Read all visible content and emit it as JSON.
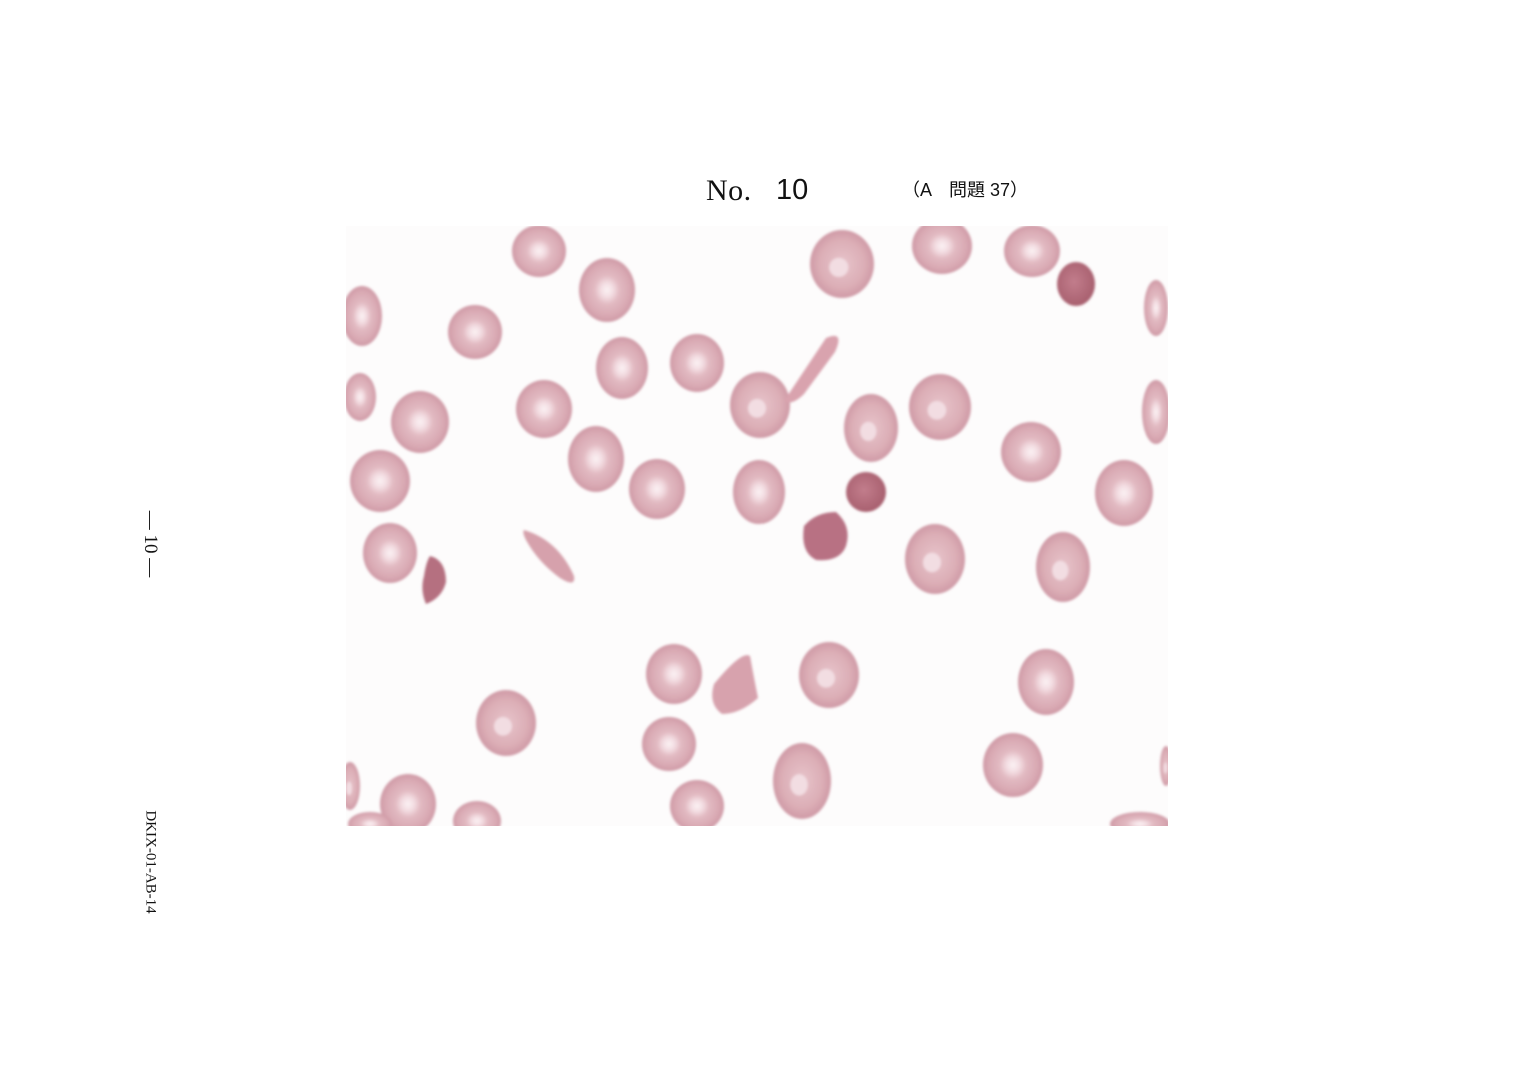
{
  "header": {
    "no_label": "No.",
    "number": "10",
    "reference": "（A　問題 37）"
  },
  "side": {
    "page_number": "— 10 —",
    "document_code": "DKIX-01-AB-14"
  },
  "figure": {
    "subject": "peripheral blood smear photomicrograph",
    "colors": {
      "cell_fill": "#dcaeb6",
      "cell_rim": "#cf9aa6",
      "cell_pallor": "#fbf1f3",
      "dense_cell": "#b56f7f",
      "background": "#fdfcfc"
    }
  }
}
